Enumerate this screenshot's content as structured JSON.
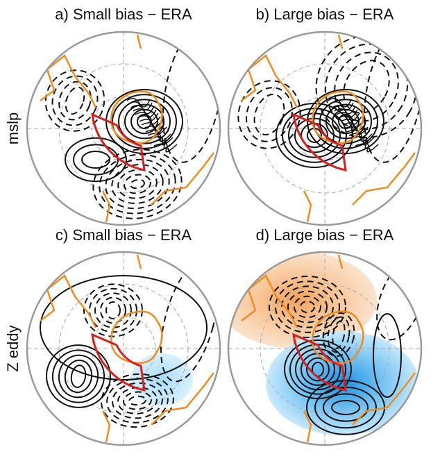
{
  "panels": [
    {
      "title": "a) Small bias − ERA"
    },
    {
      "title": "b) Large bias − ERA"
    },
    {
      "title": "c) Small bias − ERA"
    },
    {
      "title": "d) Large bias − ERA"
    }
  ],
  "rows": [
    {
      "label": "mslp"
    },
    {
      "label": "Z eddy"
    }
  ]
}
